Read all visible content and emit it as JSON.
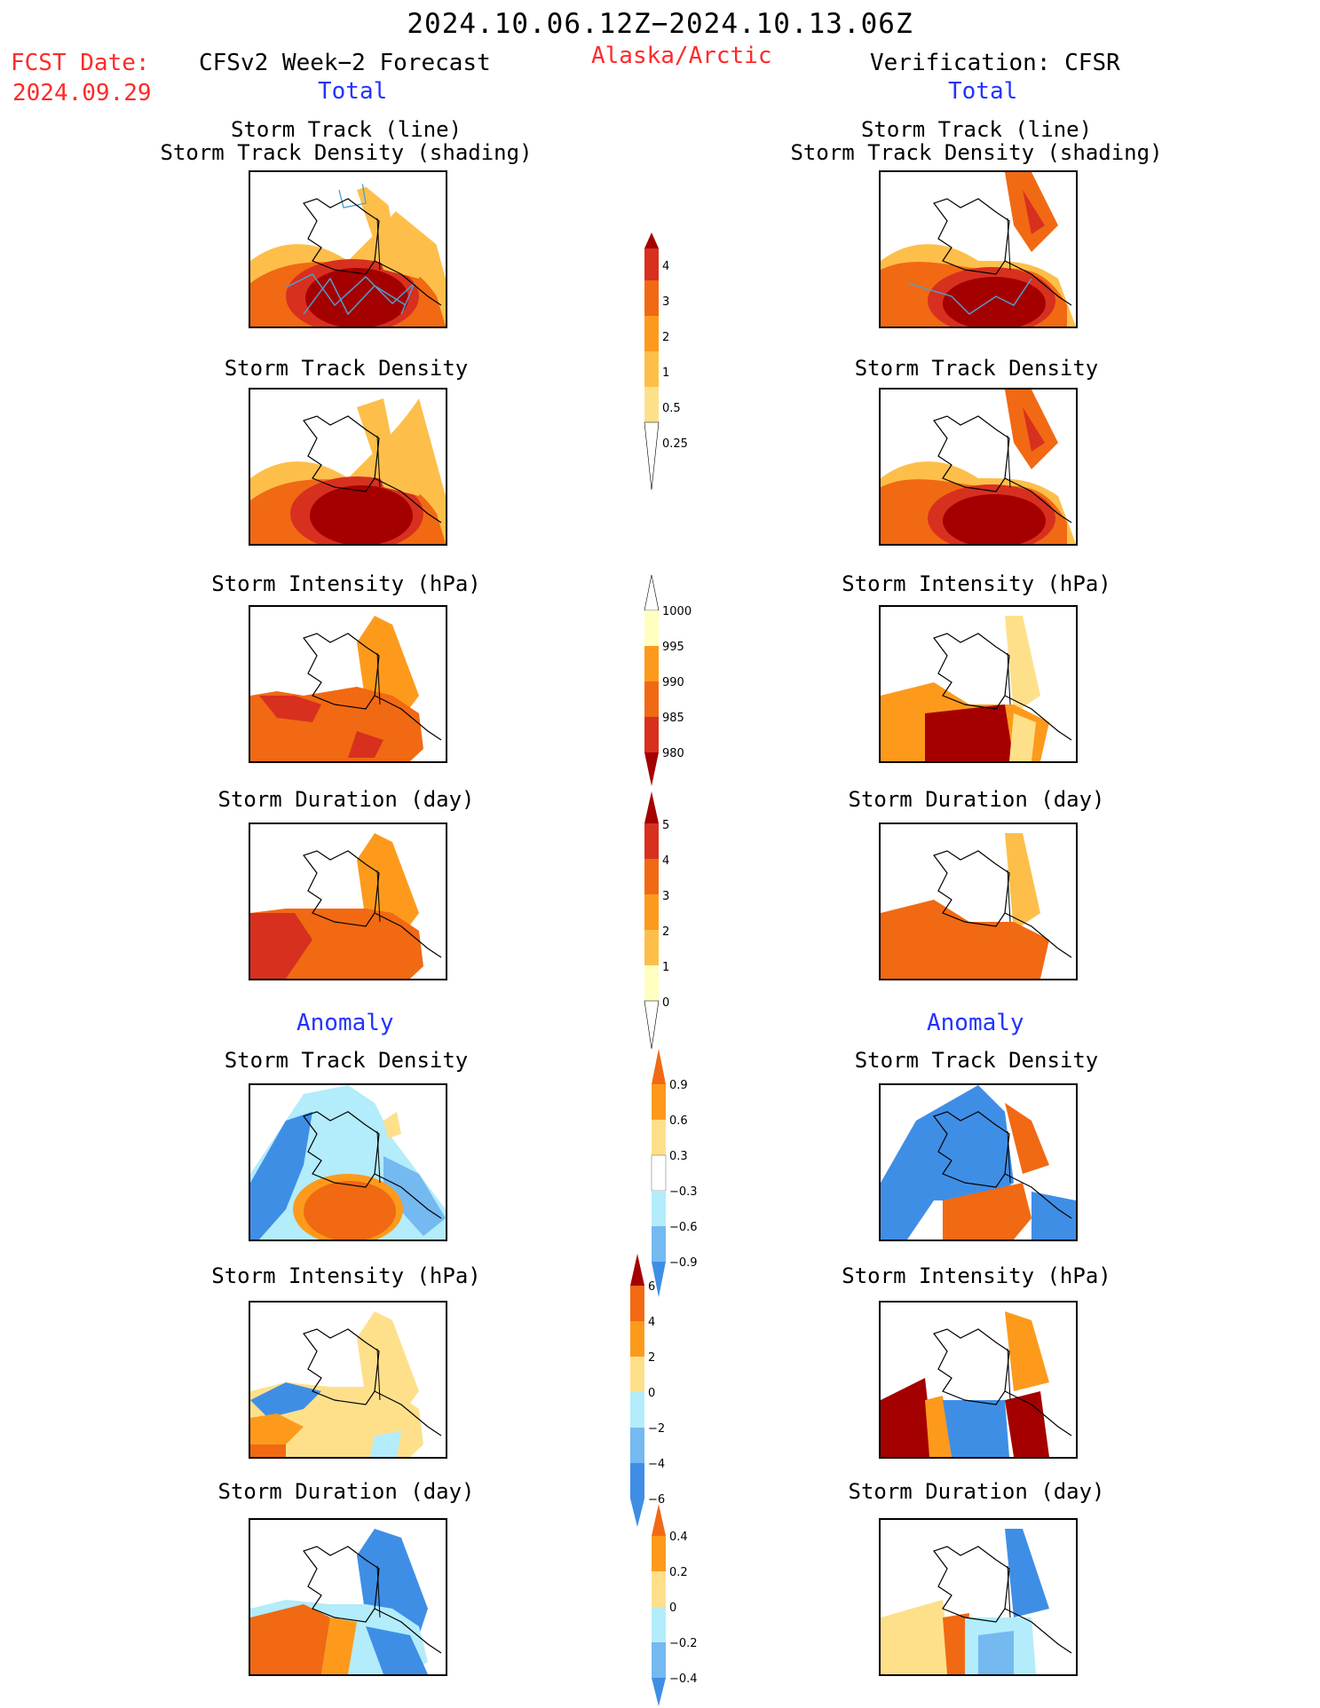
{
  "header": {
    "period": "2024.10.06.12Z−2024.10.13.06Z",
    "fcst_date_label": "FCST Date:",
    "fcst_date": "2024.09.29",
    "forecast_label": "CFSv2 Week−2 Forecast",
    "region": "Alaska/Arctic",
    "verification_label": "Verification: CFSR"
  },
  "sections": {
    "total": "Total",
    "anomaly": "Anomaly"
  },
  "panel_titles": {
    "track_line": "Storm Track (line)",
    "track_density_shading": "Storm Track Density (shading)",
    "track_density": "Storm Track Density",
    "intensity": "Storm Intensity (hPa)",
    "duration": "Storm Duration (day)"
  },
  "colorbars": {
    "density_total": [
      "0.25",
      "0.5",
      "1",
      "2",
      "3",
      "4"
    ],
    "intensity_total": [
      "980",
      "985",
      "990",
      "995",
      "1000"
    ],
    "duration_total": [
      "0",
      "1",
      "2",
      "3",
      "4",
      "5"
    ],
    "density_anomaly": [
      "−0.9",
      "−0.6",
      "−0.3",
      "0.3",
      "0.6",
      "0.9"
    ],
    "intensity_anomaly": [
      "−6",
      "−4",
      "−2",
      "0",
      "2",
      "4",
      "6"
    ],
    "duration_anomaly": [
      "−0.4",
      "−0.2",
      "0",
      "0.2",
      "0.4"
    ]
  },
  "colors": {
    "dark_red": "#a50000",
    "red": "#d7301f",
    "orange_red": "#f16913",
    "orange": "#fd9a1c",
    "light_orange": "#fdbf4a",
    "yellow": "#fee08b",
    "pale_yellow": "#ffffbf",
    "light_blue": "#b3ecfb",
    "mid_blue": "#74b9f0",
    "blue": "#3f8ee6",
    "dark_blue": "#1f5fd0"
  }
}
